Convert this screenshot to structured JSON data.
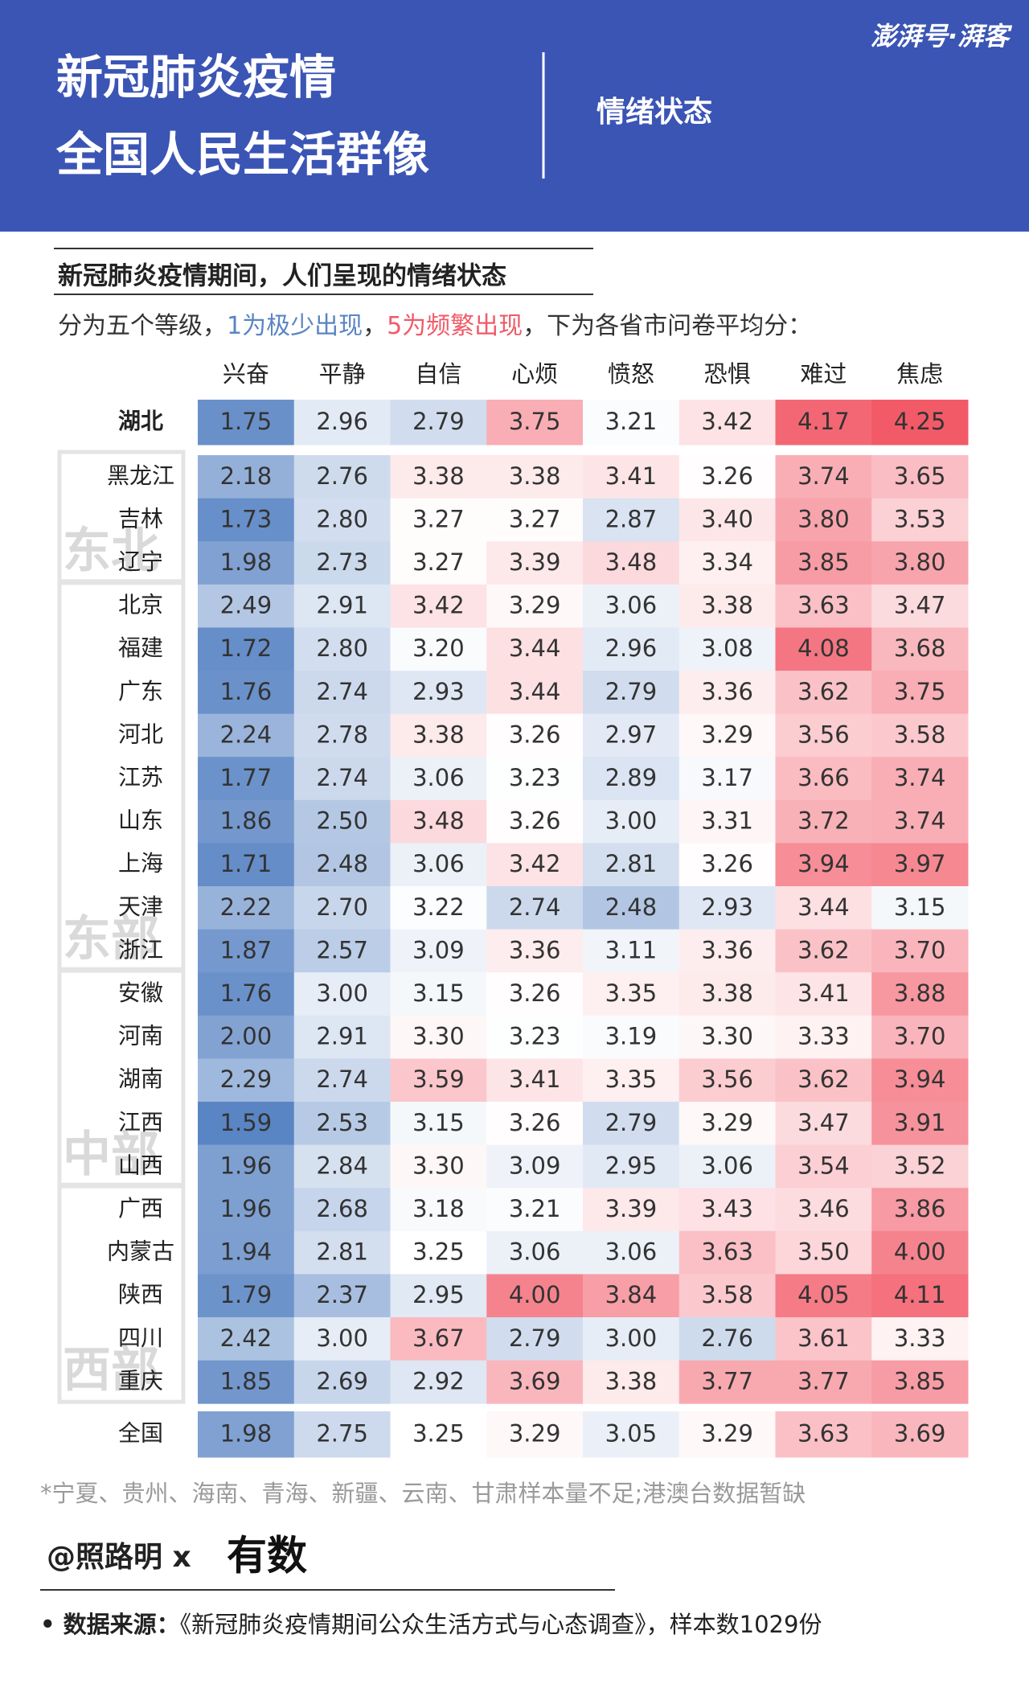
{
  "header": {
    "title_lines": [
      "新冠肺炎疫情",
      "全国人民生活群像"
    ],
    "section": "情绪状态",
    "logo": "澎湃号·湃客"
  },
  "chart_data": {
    "type": "heatmap",
    "title": "新冠肺炎疫情期间，人们呈现的情绪状态",
    "description": [
      "分为五个等级，",
      "1为极少出现",
      "，",
      "5为频繁出现",
      "，下为各省市问卷平均分："
    ],
    "description_colors": [
      "#333333",
      "#5a85c4",
      "#333333",
      "#f05a68",
      "#333333"
    ],
    "x": [
      "兴奋",
      "平静",
      "自信",
      "心烦",
      "愤怒",
      "恐惧",
      "难过",
      "焦虑"
    ],
    "color_low": "#5a85c4",
    "color_mid": "#ffffff",
    "color_high": "#f25a68",
    "clim": [
      1.6,
      3.25,
      4.25
    ],
    "groups": [
      {
        "name": null,
        "rows": [
          {
            "name": "湖北",
            "values": [
              1.75,
              2.96,
              2.79,
              3.75,
              3.21,
              3.42,
              4.17,
              4.25
            ],
            "value_labels": [
              "1.75",
              "2.96",
              "2.79",
              "3.75",
              "3.21",
              "3.42",
              "4.17",
              "4.25"
            ]
          }
        ]
      },
      {
        "name": "东北",
        "rows": [
          {
            "name": "黑龙江",
            "values": [
              2.18,
              2.76,
              3.38,
              3.38,
              3.41,
              3.26,
              3.74,
              3.65
            ],
            "value_labels": [
              "2.18",
              "2.76",
              "3.38",
              "3.38",
              "3.41",
              "3.26",
              "3.74",
              "3.65"
            ]
          },
          {
            "name": "吉林",
            "values": [
              1.73,
              2.8,
              3.27,
              3.27,
              2.87,
              3.4,
              3.8,
              3.53
            ],
            "value_labels": [
              "1.73",
              "2.80",
              "3.27",
              "3.27",
              "2.87",
              "3.40",
              "3.80",
              "3.53"
            ]
          },
          {
            "name": "辽宁",
            "values": [
              1.98,
              2.73,
              3.27,
              3.39,
              3.48,
              3.34,
              3.85,
              3.8
            ],
            "value_labels": [
              "1.98",
              "2.73",
              "3.27",
              "3.39",
              "3.48",
              "3.34",
              "3.85",
              "3.80"
            ]
          }
        ]
      },
      {
        "name": "东部",
        "rows": [
          {
            "name": "北京",
            "values": [
              2.49,
              2.91,
              3.42,
              3.29,
              3.06,
              3.38,
              3.63,
              3.47
            ],
            "value_labels": [
              "2.49",
              "2.91",
              "3.42",
              "3.29",
              "3.06",
              "3.38",
              "3.63",
              "3.47"
            ]
          },
          {
            "name": "福建",
            "values": [
              1.72,
              2.8,
              3.2,
              3.44,
              2.96,
              3.08,
              4.08,
              3.68
            ],
            "value_labels": [
              "1.72",
              "2.80",
              "3.20",
              "3.44",
              "2.96",
              "3.08",
              "4.08",
              "3.68"
            ]
          },
          {
            "name": "广东",
            "values": [
              1.76,
              2.74,
              2.93,
              3.44,
              2.79,
              3.36,
              3.62,
              3.75
            ],
            "value_labels": [
              "1.76",
              "2.74",
              "2.93",
              "3.44",
              "2.79",
              "3.36",
              "3.62",
              "3.75"
            ]
          },
          {
            "name": "河北",
            "values": [
              2.24,
              2.78,
              3.38,
              3.26,
              2.97,
              3.29,
              3.56,
              3.58
            ],
            "value_labels": [
              "2.24",
              "2.78",
              "3.38",
              "3.26",
              "2.97",
              "3.29",
              "3.56",
              "3.58"
            ]
          },
          {
            "name": "江苏",
            "values": [
              1.77,
              2.74,
              3.06,
              3.23,
              2.89,
              3.17,
              3.66,
              3.74
            ],
            "value_labels": [
              "1.77",
              "2.74",
              "3.06",
              "3.23",
              "2.89",
              "3.17",
              "3.66",
              "3.74"
            ]
          },
          {
            "name": "山东",
            "values": [
              1.86,
              2.5,
              3.48,
              3.26,
              3.0,
              3.31,
              3.72,
              3.74
            ],
            "value_labels": [
              "1.86",
              "2.50",
              "3.48",
              "3.26",
              "3.00",
              "3.31",
              "3.72",
              "3.74"
            ]
          },
          {
            "name": "上海",
            "values": [
              1.71,
              2.48,
              3.06,
              3.42,
              2.81,
              3.26,
              3.94,
              3.97
            ],
            "value_labels": [
              "1.71",
              "2.48",
              "3.06",
              "3.42",
              "2.81",
              "3.26",
              "3.94",
              "3.97"
            ]
          },
          {
            "name": "天津",
            "values": [
              2.22,
              2.7,
              3.22,
              2.74,
              2.48,
              2.93,
              3.44,
              3.15
            ],
            "value_labels": [
              "2.22",
              "2.70",
              "3.22",
              "2.74",
              "2.48",
              "2.93",
              "3.44",
              "3.15"
            ]
          },
          {
            "name": "浙江",
            "values": [
              1.87,
              2.57,
              3.09,
              3.36,
              3.11,
              3.36,
              3.62,
              3.7
            ],
            "value_labels": [
              "1.87",
              "2.57",
              "3.09",
              "3.36",
              "3.11",
              "3.36",
              "3.62",
              "3.70"
            ]
          }
        ]
      },
      {
        "name": "中部",
        "rows": [
          {
            "name": "安徽",
            "values": [
              1.76,
              3.0,
              3.15,
              3.26,
              3.35,
              3.38,
              3.41,
              3.88
            ],
            "value_labels": [
              "1.76",
              "3.00",
              "3.15",
              "3.26",
              "3.35",
              "3.38",
              "3.41",
              "3.88"
            ]
          },
          {
            "name": "河南",
            "values": [
              2.0,
              2.91,
              3.3,
              3.23,
              3.19,
              3.3,
              3.33,
              3.7
            ],
            "value_labels": [
              "2.00",
              "2.91",
              "3.30",
              "3.23",
              "3.19",
              "3.30",
              "3.33",
              "3.70"
            ]
          },
          {
            "name": "湖南",
            "values": [
              2.29,
              2.74,
              3.59,
              3.41,
              3.35,
              3.56,
              3.62,
              3.94
            ],
            "value_labels": [
              "2.29",
              "2.74",
              "3.59",
              "3.41",
              "3.35",
              "3.56",
              "3.62",
              "3.94"
            ]
          },
          {
            "name": "江西",
            "values": [
              1.59,
              2.53,
              3.15,
              3.26,
              2.79,
              3.29,
              3.47,
              3.91
            ],
            "value_labels": [
              "1.59",
              "2.53",
              "3.15",
              "3.26",
              "2.79",
              "3.29",
              "3.47",
              "3.91"
            ]
          },
          {
            "name": "山西",
            "values": [
              1.96,
              2.84,
              3.3,
              3.09,
              2.95,
              3.06,
              3.54,
              3.52
            ],
            "value_labels": [
              "1.96",
              "2.84",
              "3.30",
              "3.09",
              "2.95",
              "3.06",
              "3.54",
              "3.52"
            ]
          }
        ]
      },
      {
        "name": "西部",
        "rows": [
          {
            "name": "广西",
            "values": [
              1.96,
              2.68,
              3.18,
              3.21,
              3.39,
              3.43,
              3.46,
              3.86
            ],
            "value_labels": [
              "1.96",
              "2.68",
              "3.18",
              "3.21",
              "3.39",
              "3.43",
              "3.46",
              "3.86"
            ]
          },
          {
            "name": "内蒙古",
            "values": [
              1.94,
              2.81,
              3.25,
              3.06,
              3.06,
              3.63,
              3.5,
              4.0
            ],
            "value_labels": [
              "1.94",
              "2.81",
              "3.25",
              "3.06",
              "3.06",
              "3.63",
              "3.50",
              "4.00"
            ]
          },
          {
            "name": "陕西",
            "values": [
              1.79,
              2.37,
              2.95,
              4.0,
              3.84,
              3.58,
              4.05,
              4.11
            ],
            "value_labels": [
              "1.79",
              "2.37",
              "2.95",
              "4.00",
              "3.84",
              "3.58",
              "4.05",
              "4.11"
            ]
          },
          {
            "name": "四川",
            "values": [
              2.42,
              3.0,
              3.67,
              2.79,
              3.0,
              2.76,
              3.61,
              3.33
            ],
            "value_labels": [
              "2.42",
              "3.00",
              "3.67",
              "2.79",
              "3.00",
              "2.76",
              "3.61",
              "3.33"
            ]
          },
          {
            "name": "重庆",
            "values": [
              1.85,
              2.69,
              2.92,
              3.69,
              3.38,
              3.77,
              3.77,
              3.85
            ],
            "value_labels": [
              "1.85",
              "2.69",
              "2.92",
              "3.69",
              "3.38",
              "3.77",
              "3.77",
              "3.85"
            ]
          }
        ]
      },
      {
        "name": null,
        "rows": [
          {
            "name": "全国",
            "values": [
              1.98,
              2.75,
              3.25,
              3.29,
              3.05,
              3.29,
              3.63,
              3.69
            ],
            "value_labels": [
              "1.98",
              "2.75",
              "3.25",
              "3.29",
              "3.05",
              "3.29",
              "3.63",
              "3.69"
            ]
          }
        ]
      }
    ]
  },
  "footer": {
    "note": "*宁夏、贵州、海南、青海、新疆、云南、甘肃样本量不足;港澳台数据暂缺",
    "credit": "@照路明 x",
    "partner": "有数",
    "source_label": "• 数据来源：",
    "source": "《新冠肺炎疫情期间公众生活方式与心态调查》，样本数1029份"
  }
}
